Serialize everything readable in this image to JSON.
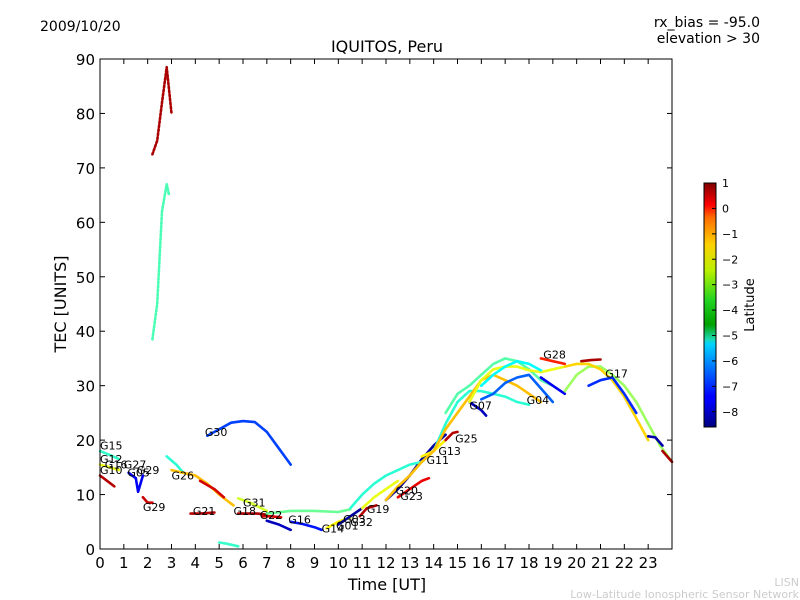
{
  "header": {
    "date": "2009/10/20",
    "rx_bias": "rx_bias = -95.0",
    "elevation": "elevation > 30"
  },
  "footer": {
    "line1": "LISN",
    "line2": "Low-Latitude Ionospheric Sensor Network"
  },
  "chart_data": {
    "type": "scatter",
    "title": "IQUITOS, Peru",
    "xlabel": "Time [UT]",
    "ylabel": "TEC [UNITS]",
    "xlim": [
      0,
      24
    ],
    "ylim": [
      0,
      90
    ],
    "xticks": [
      0,
      1,
      2,
      3,
      4,
      5,
      6,
      7,
      8,
      9,
      10,
      11,
      12,
      13,
      14,
      15,
      16,
      17,
      18,
      19,
      20,
      21,
      22,
      23
    ],
    "yticks": [
      0,
      10,
      20,
      30,
      40,
      50,
      60,
      70,
      80,
      90
    ],
    "colorbar": {
      "label": "Latitude",
      "range": [
        -8.6,
        1
      ],
      "ticks": [
        1,
        0,
        -1,
        -2,
        -3,
        -4,
        -5,
        -6,
        -7,
        -8
      ]
    },
    "series": [
      {
        "name": "arc-spike-red",
        "lat": 0.6,
        "points": [
          [
            2.2,
            72.5
          ],
          [
            2.4,
            75
          ],
          [
            2.6,
            82
          ],
          [
            2.8,
            88.5
          ],
          [
            3.0,
            80
          ]
        ]
      },
      {
        "name": "arc-spike-green",
        "lat": -4.3,
        "points": [
          [
            2.2,
            38.5
          ],
          [
            2.4,
            45
          ],
          [
            2.6,
            62
          ],
          [
            2.8,
            67
          ],
          [
            2.9,
            65
          ]
        ]
      },
      {
        "name": "G30",
        "lat": -6.8,
        "points": [
          [
            4.5,
            20.8
          ],
          [
            5.0,
            22
          ],
          [
            5.5,
            23.2
          ],
          [
            6.0,
            23.5
          ],
          [
            6.5,
            23.3
          ],
          [
            7.0,
            21.5
          ],
          [
            7.5,
            18.5
          ],
          [
            8.0,
            15.5
          ]
        ]
      },
      {
        "name": "G15",
        "lat": -4.5,
        "points": [
          [
            0.0,
            18
          ],
          [
            0.4,
            17.3
          ],
          [
            0.8,
            16.5
          ]
        ]
      },
      {
        "name": "G12",
        "lat": -2.8,
        "points": [
          [
            0.0,
            15.5
          ],
          [
            0.4,
            15
          ],
          [
            0.8,
            14.5
          ]
        ]
      },
      {
        "name": "G10",
        "lat": 0.5,
        "points": [
          [
            0.0,
            13.5
          ],
          [
            0.3,
            12.5
          ],
          [
            0.6,
            11.5
          ]
        ]
      },
      {
        "name": "G05",
        "lat": -7.5,
        "points": [
          [
            1.2,
            14
          ],
          [
            1.5,
            13
          ],
          [
            1.6,
            10.5
          ],
          [
            1.8,
            13.5
          ]
        ]
      },
      {
        "name": "G29-early",
        "lat": 0.3,
        "points": [
          [
            1.8,
            9.5
          ],
          [
            2.0,
            8.5
          ],
          [
            2.2,
            8.5
          ]
        ]
      },
      {
        "name": "G26",
        "lat": -4.6,
        "points": [
          [
            2.8,
            17
          ],
          [
            3.2,
            15.5
          ],
          [
            3.5,
            14
          ]
        ]
      },
      {
        "name": "G26b",
        "lat": -2.0,
        "points": [
          [
            3.0,
            14.5
          ],
          [
            3.5,
            14
          ],
          [
            4.0,
            13.5
          ],
          [
            4.5,
            12
          ],
          [
            5.0,
            10
          ],
          [
            5.3,
            9
          ],
          [
            5.6,
            8
          ]
        ]
      },
      {
        "name": "G21",
        "lat": 0.5,
        "points": [
          [
            3.8,
            6.5
          ],
          [
            4.2,
            6.5
          ],
          [
            4.8,
            6.7
          ]
        ]
      },
      {
        "name": "G21b",
        "lat": 0.2,
        "points": [
          [
            4.2,
            12.5
          ],
          [
            4.8,
            11
          ],
          [
            5.2,
            9.5
          ]
        ]
      },
      {
        "name": "G03-low",
        "lat": -4.5,
        "points": [
          [
            5.0,
            1.2
          ],
          [
            5.3,
            1
          ],
          [
            5.8,
            0.5
          ]
        ]
      },
      {
        "name": "G31",
        "lat": -3.0,
        "points": [
          [
            5.8,
            9.3
          ],
          [
            6.3,
            8.5
          ],
          [
            7.0,
            7
          ]
        ]
      },
      {
        "name": "G18",
        "lat": 0.6,
        "points": [
          [
            5.8,
            6.5
          ],
          [
            6.2,
            6.5
          ],
          [
            6.6,
            6.5
          ],
          [
            7.0,
            6.3
          ]
        ]
      },
      {
        "name": "G22",
        "lat": 0.2,
        "points": [
          [
            6.8,
            6
          ],
          [
            7.2,
            6
          ],
          [
            7.6,
            5.8
          ]
        ]
      },
      {
        "name": "G16",
        "lat": -8.0,
        "points": [
          [
            7.0,
            5.2
          ],
          [
            7.5,
            4.5
          ],
          [
            8.0,
            3.5
          ]
        ]
      },
      {
        "name": "G14",
        "lat": -7.2,
        "points": [
          [
            8.0,
            5
          ],
          [
            8.5,
            4.6
          ],
          [
            9.0,
            4
          ],
          [
            9.3,
            3.5
          ]
        ]
      },
      {
        "name": "midday-green",
        "lat": -4.0,
        "points": [
          [
            7.0,
            6.5
          ],
          [
            8.0,
            7
          ],
          [
            9.0,
            7
          ],
          [
            10.0,
            6.8
          ],
          [
            10.5,
            7.3
          ]
        ]
      },
      {
        "name": "G01",
        "lat": -2.5,
        "points": [
          [
            9.5,
            3.8
          ],
          [
            10.0,
            5
          ],
          [
            10.5,
            5.8
          ]
        ]
      },
      {
        "name": "G32",
        "lat": -8.3,
        "points": [
          [
            10.0,
            4.5
          ],
          [
            10.5,
            6
          ],
          [
            11.0,
            7.5
          ]
        ]
      },
      {
        "name": "G19",
        "lat": 0.5,
        "points": [
          [
            10.9,
            6
          ],
          [
            11.2,
            7.5
          ],
          [
            11.6,
            8
          ]
        ]
      },
      {
        "name": "G20",
        "lat": -2.8,
        "points": [
          [
            11.0,
            7.5
          ],
          [
            11.5,
            9.5
          ],
          [
            12.0,
            11
          ],
          [
            12.5,
            12.5
          ]
        ]
      },
      {
        "name": "G23",
        "lat": 0.0,
        "points": [
          [
            12.5,
            9.5
          ],
          [
            13.0,
            11
          ],
          [
            13.5,
            12.5
          ],
          [
            13.8,
            13
          ]
        ]
      },
      {
        "name": "G11",
        "lat": -8.3,
        "points": [
          [
            12.0,
            9
          ],
          [
            12.5,
            11
          ],
          [
            13.0,
            13.5
          ],
          [
            13.5,
            16.5
          ],
          [
            14.0,
            19
          ],
          [
            14.5,
            21
          ]
        ]
      },
      {
        "name": "G13",
        "lat": -2.5,
        "points": [
          [
            13.5,
            17
          ],
          [
            14.0,
            18
          ],
          [
            14.5,
            20
          ]
        ]
      },
      {
        "name": "G25",
        "lat": 0.5,
        "points": [
          [
            14.5,
            20
          ],
          [
            14.8,
            21.3
          ],
          [
            15.0,
            21.5
          ]
        ]
      },
      {
        "name": "afternoon-green",
        "lat": -4.6,
        "points": [
          [
            10.5,
            7.5
          ],
          [
            11.0,
            10
          ],
          [
            11.5,
            12
          ],
          [
            12.0,
            13.5
          ],
          [
            12.5,
            14.5
          ],
          [
            13.0,
            15.5
          ],
          [
            13.5,
            16
          ],
          [
            14.0,
            18
          ],
          [
            14.5,
            23
          ],
          [
            15.0,
            27
          ],
          [
            15.5,
            29
          ],
          [
            16.0,
            29
          ],
          [
            16.5,
            28.5
          ],
          [
            17.0,
            28
          ],
          [
            17.5,
            27
          ],
          [
            18.0,
            26.5
          ]
        ]
      },
      {
        "name": "afternoon-yellow",
        "lat": -2.0,
        "points": [
          [
            12.0,
            9
          ],
          [
            12.5,
            11.5
          ],
          [
            13.0,
            13.5
          ],
          [
            13.5,
            16
          ],
          [
            14.0,
            18
          ],
          [
            14.5,
            22
          ],
          [
            15.0,
            25
          ],
          [
            15.5,
            28
          ],
          [
            16.0,
            31
          ],
          [
            16.5,
            32
          ],
          [
            17.0,
            31
          ],
          [
            17.5,
            30
          ],
          [
            18.0,
            28.5
          ],
          [
            18.5,
            27
          ]
        ]
      },
      {
        "name": "G07",
        "lat": -8.0,
        "points": [
          [
            15.5,
            27
          ],
          [
            16.0,
            25.5
          ],
          [
            16.2,
            24.5
          ]
        ]
      },
      {
        "name": "peak-green",
        "lat": -4.2,
        "points": [
          [
            14.5,
            25
          ],
          [
            15.0,
            28.5
          ],
          [
            15.5,
            30
          ],
          [
            16.0,
            32
          ],
          [
            16.5,
            34
          ],
          [
            17.0,
            35
          ],
          [
            17.5,
            34.5
          ],
          [
            18.0,
            33
          ],
          [
            18.5,
            31
          ],
          [
            19.0,
            30
          ]
        ]
      },
      {
        "name": "peak-lightgreen",
        "lat": -2.8,
        "points": [
          [
            15.5,
            27
          ],
          [
            16.0,
            31
          ],
          [
            16.5,
            33
          ],
          [
            17.0,
            33.5
          ],
          [
            17.5,
            33.5
          ],
          [
            18.0,
            32.8
          ],
          [
            18.5,
            32.5
          ],
          [
            19.0,
            33
          ],
          [
            19.5,
            33.5
          ]
        ]
      },
      {
        "name": "G04",
        "lat": -6.5,
        "points": [
          [
            16.0,
            27.5
          ],
          [
            16.5,
            28.5
          ],
          [
            17.0,
            30.5
          ],
          [
            17.5,
            31.5
          ],
          [
            18.0,
            32
          ],
          [
            18.5,
            29.5
          ],
          [
            19.0,
            27
          ]
        ]
      },
      {
        "name": "darkgreen-hump",
        "lat": -5.0,
        "points": [
          [
            16.0,
            30
          ],
          [
            16.5,
            32
          ],
          [
            17.0,
            33.5
          ],
          [
            17.5,
            34.5
          ],
          [
            18.0,
            34
          ],
          [
            18.5,
            32.8
          ]
        ]
      },
      {
        "name": "G28",
        "lat": -0.5,
        "points": [
          [
            18.5,
            35
          ],
          [
            19.0,
            34.5
          ],
          [
            19.5,
            34
          ]
        ]
      },
      {
        "name": "G28-blue",
        "lat": -7.5,
        "points": [
          [
            18.5,
            31.5
          ],
          [
            19.0,
            30
          ],
          [
            19.5,
            28.5
          ]
        ]
      },
      {
        "name": "evening-green",
        "lat": -3.5,
        "points": [
          [
            19.5,
            29
          ],
          [
            20.0,
            32
          ],
          [
            20.5,
            33.5
          ],
          [
            21.0,
            33.5
          ],
          [
            21.5,
            32
          ],
          [
            22.0,
            30
          ],
          [
            22.5,
            27
          ],
          [
            23.0,
            23
          ],
          [
            23.5,
            19
          ],
          [
            24.0,
            16
          ]
        ]
      },
      {
        "name": "evening-yellow",
        "lat": -2.2,
        "points": [
          [
            19.5,
            33.5
          ],
          [
            20.0,
            34
          ],
          [
            20.5,
            34
          ],
          [
            21.0,
            33
          ],
          [
            21.5,
            31
          ],
          [
            22.0,
            28
          ],
          [
            22.5,
            24
          ],
          [
            23.0,
            20
          ]
        ]
      },
      {
        "name": "G17",
        "lat": -7.0,
        "points": [
          [
            20.5,
            30
          ],
          [
            21.0,
            31
          ],
          [
            21.5,
            31.5
          ],
          [
            22.0,
            28.5
          ],
          [
            22.5,
            25
          ]
        ]
      },
      {
        "name": "G17-red",
        "lat": 0.6,
        "points": [
          [
            20.2,
            34.5
          ],
          [
            20.6,
            34.7
          ],
          [
            21.0,
            34.8
          ]
        ]
      },
      {
        "name": "late-blue",
        "lat": -8.2,
        "points": [
          [
            23.0,
            20.7
          ],
          [
            23.3,
            20.5
          ],
          [
            23.6,
            19
          ]
        ]
      },
      {
        "name": "late-red",
        "lat": 0.6,
        "points": [
          [
            23.6,
            18
          ],
          [
            24.0,
            16
          ]
        ]
      }
    ],
    "labels": [
      {
        "text": "G15",
        "x": 0.0,
        "y": 18.3
      },
      {
        "text": "G12",
        "x": 0.0,
        "y": 15.8
      },
      {
        "text": "G10",
        "x": 0.0,
        "y": 13.8
      },
      {
        "text": "G16",
        "x": 0.2,
        "y": 14.8
      },
      {
        "text": "G27",
        "x": 1.0,
        "y": 14.8
      },
      {
        "text": "G05",
        "x": 1.15,
        "y": 13.3
      },
      {
        "text": "G29",
        "x": 1.55,
        "y": 13.8
      },
      {
        "text": "G29",
        "x": 1.8,
        "y": 7.0
      },
      {
        "text": "G26",
        "x": 3.0,
        "y": 12.8
      },
      {
        "text": "G30",
        "x": 4.4,
        "y": 20.8
      },
      {
        "text": "G21",
        "x": 3.9,
        "y": 6.2
      },
      {
        "text": "G31",
        "x": 6.0,
        "y": 7.8
      },
      {
        "text": "G18",
        "x": 5.6,
        "y": 6.2
      },
      {
        "text": "G22",
        "x": 6.7,
        "y": 5.5
      },
      {
        "text": "G16",
        "x": 7.9,
        "y": 4.7
      },
      {
        "text": "G14",
        "x": 9.3,
        "y": 3.0
      },
      {
        "text": "G01",
        "x": 9.9,
        "y": 3.6
      },
      {
        "text": "G03",
        "x": 10.2,
        "y": 4.8
      },
      {
        "text": "G32",
        "x": 10.5,
        "y": 4.2
      },
      {
        "text": "G19",
        "x": 11.2,
        "y": 6.6
      },
      {
        "text": "G20",
        "x": 12.4,
        "y": 10.0
      },
      {
        "text": "G23",
        "x": 12.6,
        "y": 9.0
      },
      {
        "text": "G11",
        "x": 13.7,
        "y": 15.6
      },
      {
        "text": "G13",
        "x": 14.2,
        "y": 17.3
      },
      {
        "text": "G25",
        "x": 14.9,
        "y": 19.6
      },
      {
        "text": "G07",
        "x": 15.5,
        "y": 25.6
      },
      {
        "text": "G04",
        "x": 17.9,
        "y": 26.6
      },
      {
        "text": "G28",
        "x": 18.6,
        "y": 35.0
      },
      {
        "text": "G17",
        "x": 21.2,
        "y": 31.5
      }
    ]
  }
}
